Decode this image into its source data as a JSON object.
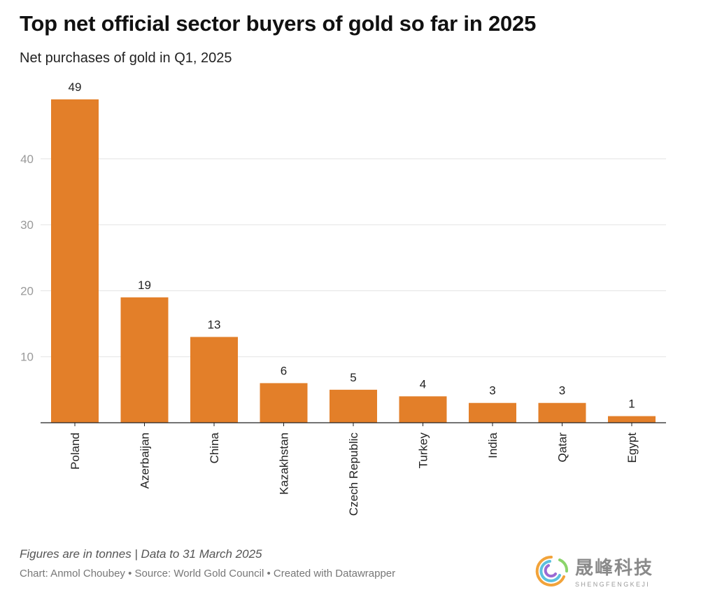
{
  "header": {
    "title": "Top net official sector buyers of gold so far in 2025",
    "subtitle": "Net purchases of gold in Q1, 2025"
  },
  "footer": {
    "note": "Figures are in tonnes | Data to 31 March 2025",
    "credit": "Chart: Anmol Choubey • Source: World Gold Council • Created with Datawrapper"
  },
  "watermark": {
    "chinese": "晟峰科技",
    "latin": "SHENGFENGKEJI"
  },
  "chart_data": {
    "type": "bar",
    "title": "Top net official sector buyers of gold so far in 2025",
    "subtitle": "Net purchases of gold in Q1, 2025",
    "categories": [
      "Poland",
      "Azerbaijan",
      "China",
      "Kazakhstan",
      "Czech Republic",
      "Turkey",
      "India",
      "Qatar",
      "Egypt"
    ],
    "values": [
      49,
      19,
      13,
      6,
      5,
      4,
      3,
      3,
      1
    ],
    "value_labels": [
      "49",
      "19",
      "13",
      "6",
      "5",
      "4",
      "3",
      "3",
      "1"
    ],
    "xlabel": "",
    "ylabel": "",
    "ylim": [
      0,
      49
    ],
    "yticks": [
      10,
      20,
      30,
      40
    ],
    "ytick_labels": [
      "10",
      "20",
      "30",
      "40"
    ],
    "grid": true,
    "bar_color": "#e37f29",
    "unit": "tonnes"
  }
}
